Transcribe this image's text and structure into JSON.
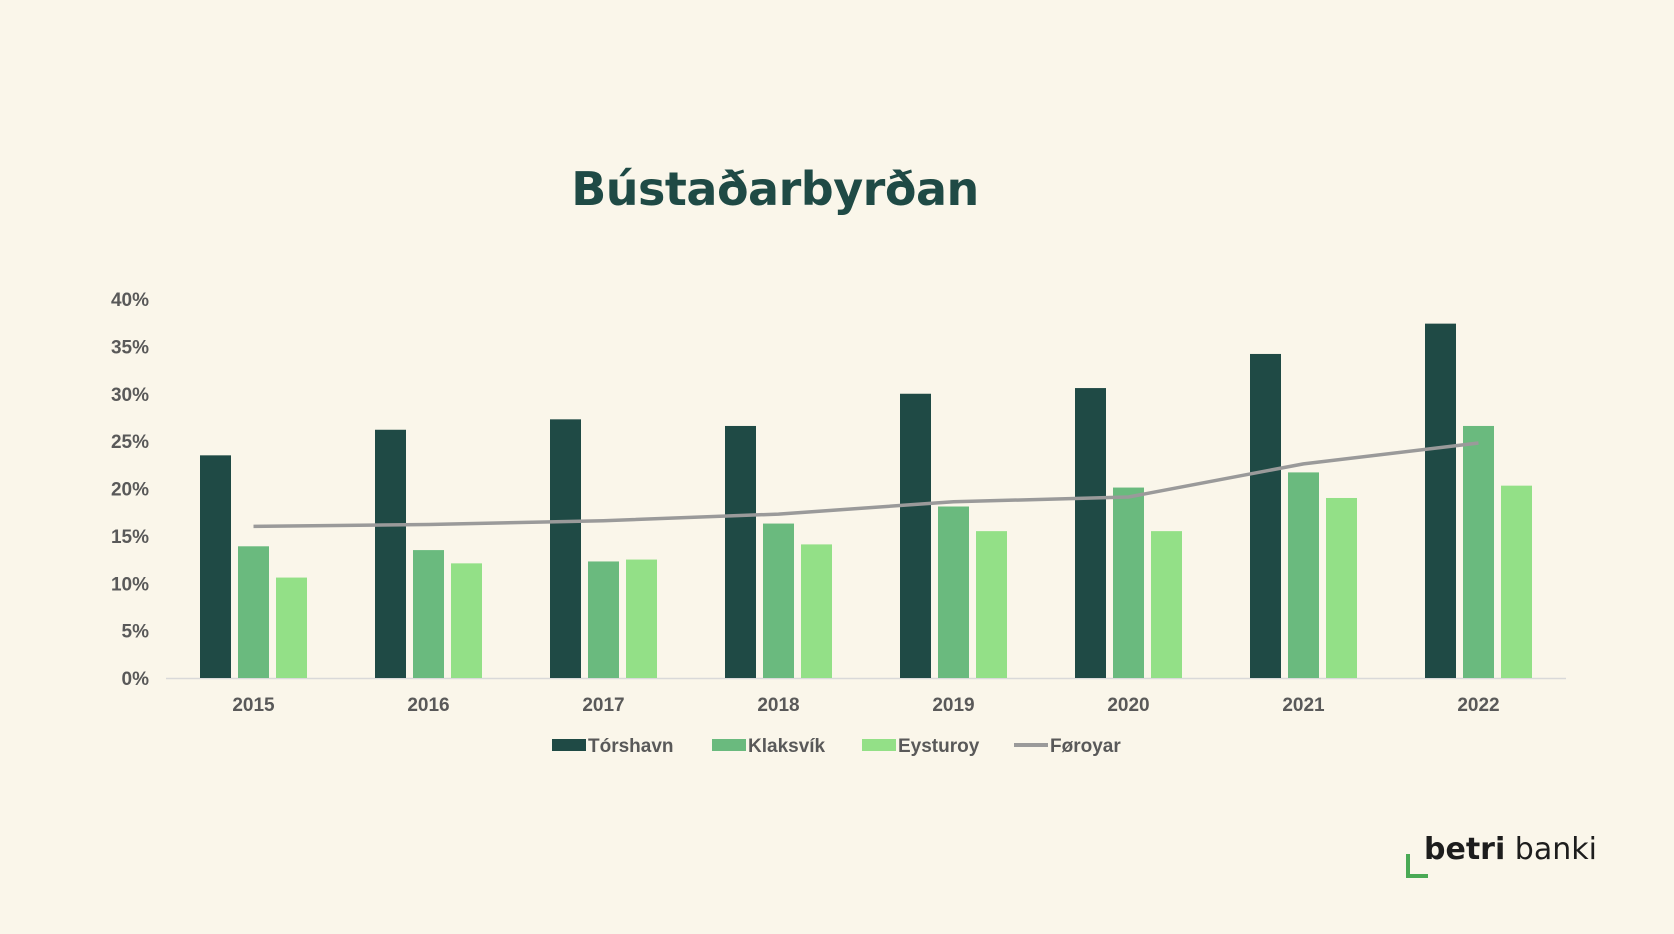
{
  "chart_data": {
    "type": "bar",
    "title": "Bústaðarbyrðan",
    "categories": [
      "2015",
      "2016",
      "2017",
      "2018",
      "2019",
      "2020",
      "2021",
      "2022"
    ],
    "y_ticks": [
      "0%",
      "5%",
      "10%",
      "15%",
      "20%",
      "25%",
      "30%",
      "35%",
      "40%"
    ],
    "ylim": [
      0,
      40
    ],
    "y_unit": "%",
    "grid": false,
    "legend_position": "bottom",
    "series": [
      {
        "name": "Tórshavn",
        "type": "bar",
        "color": "#1f4a45",
        "values": [
          23.5,
          26.2,
          27.3,
          26.6,
          30.0,
          30.6,
          34.2,
          37.4
        ]
      },
      {
        "name": "Klaksvík",
        "type": "bar",
        "color": "#6aba7e",
        "values": [
          13.9,
          13.5,
          12.3,
          16.3,
          18.1,
          20.1,
          21.7,
          26.6
        ]
      },
      {
        "name": "Eysturoy",
        "type": "bar",
        "color": "#93e087",
        "values": [
          10.6,
          12.1,
          12.5,
          14.1,
          15.5,
          15.5,
          19.0,
          20.3
        ]
      },
      {
        "name": "Føroyar",
        "type": "line",
        "color": "#9a9a9a",
        "values": [
          16.0,
          16.2,
          16.6,
          17.3,
          18.6,
          19.1,
          22.6,
          24.8
        ]
      }
    ],
    "legend": [
      "Tórshavn",
      "Klaksvík",
      "Eysturoy",
      "Føroyar"
    ]
  },
  "logo": {
    "bold": "betri",
    "regular": " banki"
  }
}
